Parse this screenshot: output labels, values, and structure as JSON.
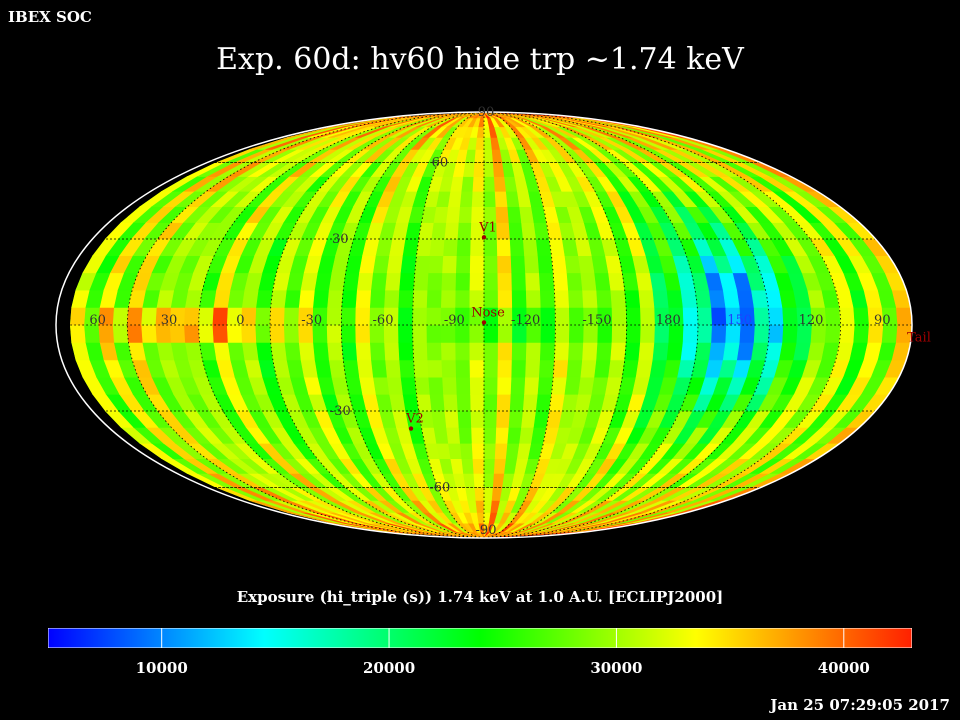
{
  "header": {
    "corner_label": "IBEX SOC",
    "title": "Exp.   60d: hv60 hide trp ~1.74 keV",
    "timestamp": "Jan 25 07:29:05 2017"
  },
  "colorbar": {
    "title": "Exposure (hi_triple (s))  1.74 keV at 1.0 A.U. [ECLIPJ2000]",
    "min": 5000,
    "max": 43000,
    "ticks": [
      10000,
      20000,
      30000,
      40000
    ],
    "tick_labels": [
      "10000",
      "20000",
      "30000",
      "40000"
    ]
  },
  "chart_data": {
    "type": "heatmap",
    "projection": "mollweide",
    "title": "Exp.   60d: hv60 hide trp ~1.74 keV",
    "colorbar_label": "Exposure (hi_triple (s))  1.74 keV at 1.0 A.U. [ECLIPJ2000]",
    "value_range": [
      5000,
      43000
    ],
    "colormap": [
      "#0000ff",
      "#00ffff",
      "#00ff00",
      "#ffff00",
      "#ff2000"
    ],
    "grid": true,
    "longitude_labels": [
      "60",
      "30",
      "0",
      "-30",
      "-60",
      "-90",
      "-120",
      "-150",
      "180",
      "150",
      "120",
      "90"
    ],
    "latitude_labels": [
      "90",
      "60",
      "30",
      "-30",
      "-60",
      "-90"
    ],
    "markers": [
      {
        "name": "V1",
        "lon": 255,
        "lat": 35
      },
      {
        "name": "Nose",
        "lon": 255,
        "lat": 5
      },
      {
        "name": "V2",
        "lon": 289,
        "lat": -32
      },
      {
        "name": "Tail",
        "lon": 75,
        "lat": -5
      }
    ],
    "regions": [
      {
        "description": "ecliptic band, high exposure",
        "lon_range": [
          -60,
          80
        ],
        "lat_range": [
          -6,
          6
        ],
        "value": 38000
      },
      {
        "description": "ecliptic band, low exposure",
        "lon_range": [
          -150,
          -90
        ],
        "lat_range": [
          -6,
          6
        ],
        "value": 21000
      },
      {
        "description": "minimum exposure region",
        "lon_range": [
          130,
          165
        ],
        "lat_range": [
          -25,
          30
        ],
        "value": 9000
      },
      {
        "description": "polar high exposure",
        "lat_range": [
          75,
          90
        ],
        "value": 40000
      }
    ]
  }
}
